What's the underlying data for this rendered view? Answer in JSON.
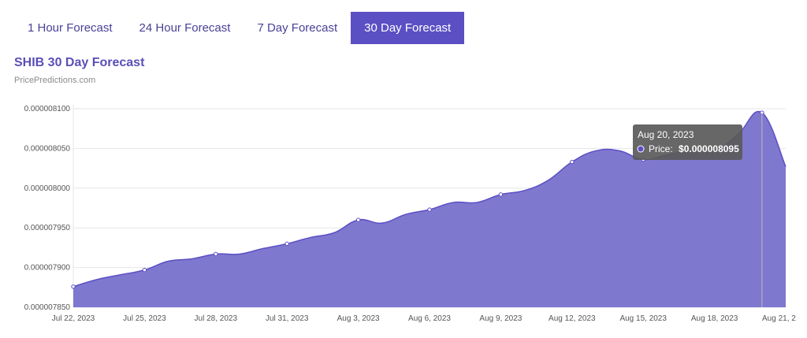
{
  "tabs": [
    {
      "label": "1 Hour Forecast",
      "active": false
    },
    {
      "label": "24 Hour Forecast",
      "active": false
    },
    {
      "label": "7 Day Forecast",
      "active": false
    },
    {
      "label": "30 Day Forecast",
      "active": true
    }
  ],
  "chart_data": {
    "type": "area",
    "title": "SHIB 30 Day Forecast",
    "subtitle": "PricePredictions.com",
    "xlabel": "",
    "ylabel": "",
    "ylim": [
      7.85e-06,
      8.1e-06
    ],
    "yticks": [
      "0.000008100",
      "0.000008050",
      "0.000008000",
      "0.000007950",
      "0.000007900",
      "0.000007850"
    ],
    "xticks": [
      "Jul 22, 2023",
      "Jul 25, 2023",
      "Jul 28, 2023",
      "Jul 31, 2023",
      "Aug 3, 2023",
      "Aug 6, 2023",
      "Aug 9, 2023",
      "Aug 12, 2023",
      "Aug 15, 2023",
      "Aug 18, 2023",
      "Aug 21, 2"
    ],
    "grid": true,
    "color": "#7f78cf",
    "line_color": "#5b4fc4",
    "series": [
      {
        "name": "Price",
        "x": [
          "Jul 22, 2023",
          "Jul 23, 2023",
          "Jul 24, 2023",
          "Jul 25, 2023",
          "Jul 26, 2023",
          "Jul 27, 2023",
          "Jul 28, 2023",
          "Jul 29, 2023",
          "Jul 30, 2023",
          "Jul 31, 2023",
          "Aug 1, 2023",
          "Aug 2, 2023",
          "Aug 3, 2023",
          "Aug 4, 2023",
          "Aug 5, 2023",
          "Aug 6, 2023",
          "Aug 7, 2023",
          "Aug 8, 2023",
          "Aug 9, 2023",
          "Aug 10, 2023",
          "Aug 11, 2023",
          "Aug 12, 2023",
          "Aug 13, 2023",
          "Aug 14, 2023",
          "Aug 15, 2023",
          "Aug 16, 2023",
          "Aug 17, 2023",
          "Aug 18, 2023",
          "Aug 19, 2023",
          "Aug 20, 2023",
          "Aug 21, 2023"
        ],
        "values": [
          7.876e-06,
          7.885e-06,
          7.891e-06,
          7.897e-06,
          7.908e-06,
          7.911e-06,
          7.917e-06,
          7.917e-06,
          7.924e-06,
          7.93e-06,
          7.938e-06,
          7.944e-06,
          7.96e-06,
          7.956e-06,
          7.967e-06,
          7.973e-06,
          7.982e-06,
          7.982e-06,
          7.992e-06,
          7.997e-06,
          8.01e-06,
          8.033e-06,
          8.047e-06,
          8.047e-06,
          8.036e-06,
          8.042e-06,
          8.047e-06,
          8.047e-06,
          8.068e-06,
          8.095e-06,
          8.027e-06
        ]
      }
    ],
    "markers_shown_on": [
      "Jul 22, 2023",
      "Jul 25, 2023",
      "Jul 28, 2023",
      "Jul 31, 2023",
      "Aug 3, 2023",
      "Aug 6, 2023",
      "Aug 9, 2023",
      "Aug 12, 2023",
      "Aug 15, 2023",
      "Aug 20, 2023"
    ],
    "tooltip": {
      "date": "Aug 20, 2023",
      "label": "Price:",
      "value": "$0.000008095"
    }
  }
}
